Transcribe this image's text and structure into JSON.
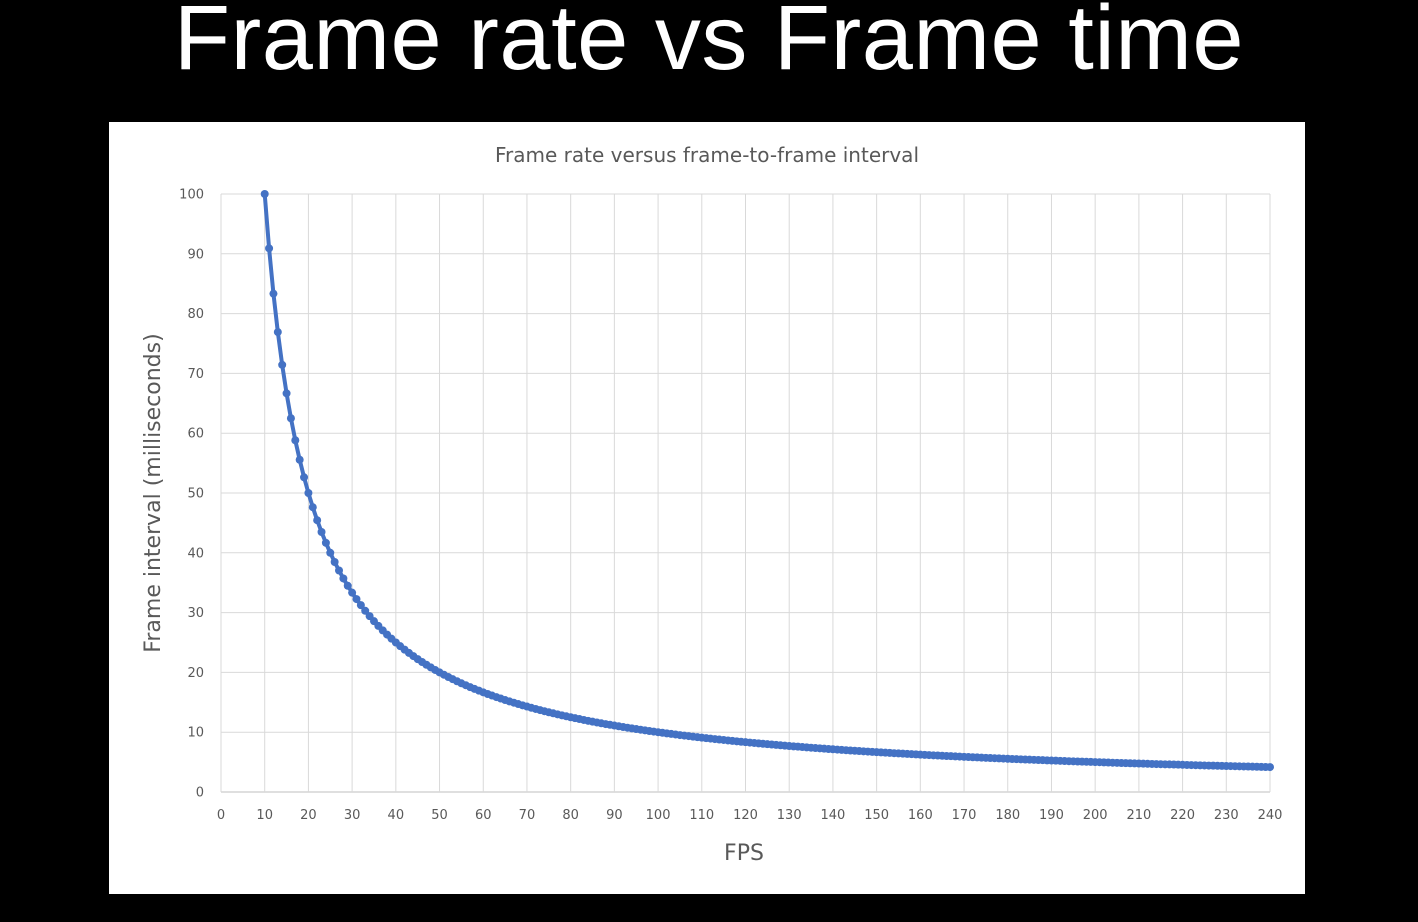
{
  "slide": {
    "title": "Frame rate vs Frame time"
  },
  "colors": {
    "background": "#000000",
    "panel": "#ffffff",
    "series": "#4472C4",
    "grid": "#d9d9d9",
    "text": "#595959"
  },
  "chart_data": {
    "type": "line",
    "title": "Frame rate versus frame-to-frame interval",
    "xlabel": "FPS",
    "ylabel": "Frame interval (milliseconds)",
    "xlim": [
      0,
      240
    ],
    "ylim": [
      0,
      100
    ],
    "x_ticks": [
      0,
      10,
      20,
      30,
      40,
      50,
      60,
      70,
      80,
      90,
      100,
      110,
      120,
      130,
      140,
      150,
      160,
      170,
      180,
      190,
      200,
      210,
      220,
      230,
      240
    ],
    "y_ticks": [
      0,
      10,
      20,
      30,
      40,
      50,
      60,
      70,
      80,
      90,
      100
    ],
    "grid": true,
    "markers": true,
    "series": [
      {
        "color": "#4472C4",
        "x": [
          10,
          11,
          12,
          13,
          14,
          15,
          16,
          17,
          18,
          19,
          20,
          21,
          22,
          23,
          24,
          25,
          26,
          27,
          28,
          29,
          30,
          31,
          32,
          33,
          34,
          35,
          36,
          37,
          38,
          39,
          40,
          41,
          42,
          43,
          44,
          45,
          46,
          47,
          48,
          49,
          50,
          51,
          52,
          53,
          54,
          55,
          56,
          57,
          58,
          59,
          60,
          61,
          62,
          63,
          64,
          65,
          66,
          67,
          68,
          69,
          70,
          71,
          72,
          73,
          74,
          75,
          76,
          77,
          78,
          79,
          80,
          81,
          82,
          83,
          84,
          85,
          86,
          87,
          88,
          89,
          90,
          91,
          92,
          93,
          94,
          95,
          96,
          97,
          98,
          99,
          100,
          101,
          102,
          103,
          104,
          105,
          106,
          107,
          108,
          109,
          110,
          111,
          112,
          113,
          114,
          115,
          116,
          117,
          118,
          119,
          120,
          121,
          122,
          123,
          124,
          125,
          126,
          127,
          128,
          129,
          130,
          131,
          132,
          133,
          134,
          135,
          136,
          137,
          138,
          139,
          140,
          141,
          142,
          143,
          144,
          145,
          146,
          147,
          148,
          149,
          150,
          151,
          152,
          153,
          154,
          155,
          156,
          157,
          158,
          159,
          160,
          161,
          162,
          163,
          164,
          165,
          166,
          167,
          168,
          169,
          170,
          171,
          172,
          173,
          174,
          175,
          176,
          177,
          178,
          179,
          180,
          181,
          182,
          183,
          184,
          185,
          186,
          187,
          188,
          189,
          190,
          191,
          192,
          193,
          194,
          195,
          196,
          197,
          198,
          199,
          200,
          201,
          202,
          203,
          204,
          205,
          206,
          207,
          208,
          209,
          210,
          211,
          212,
          213,
          214,
          215,
          216,
          217,
          218,
          219,
          220,
          221,
          222,
          223,
          224,
          225,
          226,
          227,
          228,
          229,
          230,
          231,
          232,
          233,
          234,
          235,
          236,
          237,
          238,
          239,
          240
        ],
        "values": [
          100,
          90.91,
          83.33,
          76.92,
          71.43,
          66.67,
          62.5,
          58.82,
          55.56,
          52.63,
          50,
          47.62,
          45.45,
          43.48,
          41.67,
          40,
          38.46,
          37.04,
          35.71,
          34.48,
          33.33,
          32.26,
          31.25,
          30.3,
          29.41,
          28.57,
          27.78,
          27.03,
          26.32,
          25.64,
          25,
          24.39,
          23.81,
          23.26,
          22.73,
          22.22,
          21.74,
          21.28,
          20.83,
          20.41,
          20,
          19.61,
          19.23,
          18.87,
          18.52,
          18.18,
          17.86,
          17.54,
          17.24,
          16.95,
          16.67,
          16.39,
          16.13,
          15.87,
          15.63,
          15.38,
          15.15,
          14.93,
          14.71,
          14.49,
          14.29,
          14.08,
          13.89,
          13.7,
          13.51,
          13.33,
          13.16,
          12.99,
          12.82,
          12.66,
          12.5,
          12.35,
          12.2,
          12.05,
          11.9,
          11.76,
          11.63,
          11.49,
          11.36,
          11.24,
          11.11,
          10.99,
          10.87,
          10.75,
          10.64,
          10.53,
          10.42,
          10.31,
          10.2,
          10.1,
          10,
          9.9,
          9.8,
          9.71,
          9.62,
          9.52,
          9.43,
          9.35,
          9.26,
          9.17,
          9.09,
          9.01,
          8.93,
          8.85,
          8.77,
          8.7,
          8.62,
          8.55,
          8.47,
          8.4,
          8.33,
          8.26,
          8.2,
          8.13,
          8.06,
          8,
          7.94,
          7.87,
          7.81,
          7.75,
          7.69,
          7.63,
          7.58,
          7.52,
          7.46,
          7.41,
          7.35,
          7.3,
          7.25,
          7.19,
          7.14,
          7.09,
          7.04,
          6.99,
          6.94,
          6.9,
          6.85,
          6.8,
          6.76,
          6.71,
          6.67,
          6.62,
          6.58,
          6.54,
          6.49,
          6.45,
          6.41,
          6.37,
          6.33,
          6.29,
          6.25,
          6.21,
          6.17,
          6.13,
          6.1,
          6.06,
          6.02,
          5.99,
          5.95,
          5.92,
          5.88,
          5.85,
          5.81,
          5.78,
          5.75,
          5.71,
          5.68,
          5.65,
          5.62,
          5.59,
          5.56,
          5.52,
          5.49,
          5.46,
          5.43,
          5.41,
          5.38,
          5.35,
          5.32,
          5.29,
          5.26,
          5.24,
          5.21,
          5.18,
          5.15,
          5.13,
          5.1,
          5.08,
          5.05,
          5.03,
          5,
          4.98,
          4.95,
          4.93,
          4.9,
          4.88,
          4.85,
          4.83,
          4.81,
          4.78,
          4.76,
          4.74,
          4.72,
          4.69,
          4.67,
          4.65,
          4.63,
          4.61,
          4.59,
          4.57,
          4.55,
          4.52,
          4.5,
          4.48,
          4.46,
          4.44,
          4.42,
          4.41,
          4.39,
          4.37,
          4.35,
          4.33,
          4.31,
          4.29,
          4.27,
          4.26,
          4.24,
          4.22,
          4.2,
          4.18,
          4.17
        ]
      }
    ]
  }
}
